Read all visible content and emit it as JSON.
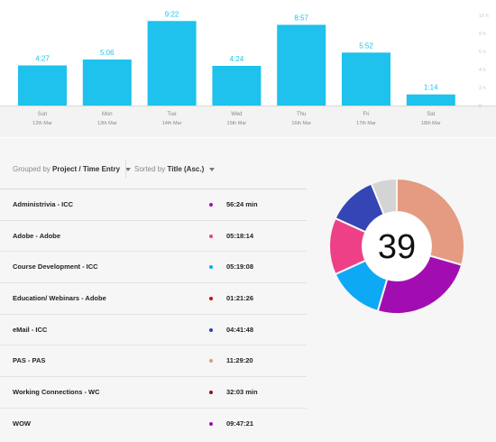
{
  "chart_data": {
    "type": "bar",
    "categories": [
      "Sun",
      "Mon",
      "Tue",
      "Wed",
      "Thu",
      "Fri",
      "Sat"
    ],
    "dates": [
      "12th Mar",
      "13th Mar",
      "14th Mar",
      "15th Mar",
      "16th Mar",
      "17th Mar",
      "18th Mar"
    ],
    "values": [
      4.45,
      5.1,
      9.37,
      4.4,
      8.95,
      5.87,
      1.23
    ],
    "value_labels": [
      "4:27",
      "5:06",
      "9:22",
      "4:24",
      "8:57",
      "5:52",
      "1:14"
    ],
    "ylim": [
      0,
      10
    ],
    "y_ticks": [
      0,
      2,
      4,
      6,
      8,
      10
    ],
    "y_tick_labels": [
      "0",
      "2 h",
      "4 h",
      "6 h",
      "8 h",
      "10 h"
    ],
    "bar_color": "#1ec2ec",
    "label_color": "#1ec2ec",
    "grid": false
  },
  "toolbar": {
    "group_prefix": "Grouped by",
    "group_value": "Project / Time Entry",
    "sort_prefix": "Sorted by",
    "sort_value": "Title (Asc.)"
  },
  "entries": [
    {
      "title": "Administrivia - ICC",
      "duration": "56:24 min",
      "color": "#a10eb5"
    },
    {
      "title": "Adobe - Adobe",
      "duration": "05:18:14",
      "color": "#ee3f8a"
    },
    {
      "title": "Course Development - ICC",
      "duration": "05:19:08",
      "color": "#06aaf5"
    },
    {
      "title": "Education/ Webinars - Adobe",
      "duration": "01:21:26",
      "color": "#c50d18"
    },
    {
      "title": "eMail - ICC",
      "duration": "04:41:48",
      "color": "#2d40b4"
    },
    {
      "title": "PAS - PAS",
      "duration": "11:29:20",
      "color": "#e0987e"
    },
    {
      "title": "Working Connections - WC",
      "duration": "32:03 min",
      "color": "#990c1c"
    },
    {
      "title": "WOW",
      "duration": "09:47:21",
      "color": "#a10eb5"
    }
  ],
  "donut": {
    "center_value": "39",
    "segments": [
      {
        "value": 11.49,
        "color": "#e59a82"
      },
      {
        "value": 9.79,
        "color": "#a20db2"
      },
      {
        "value": 5.32,
        "color": "#0ea9f4"
      },
      {
        "value": 5.3,
        "color": "#ee4086"
      },
      {
        "value": 4.7,
        "color": "#3445b5"
      },
      {
        "value": 2.4,
        "color": "#d4d4d4"
      }
    ]
  }
}
